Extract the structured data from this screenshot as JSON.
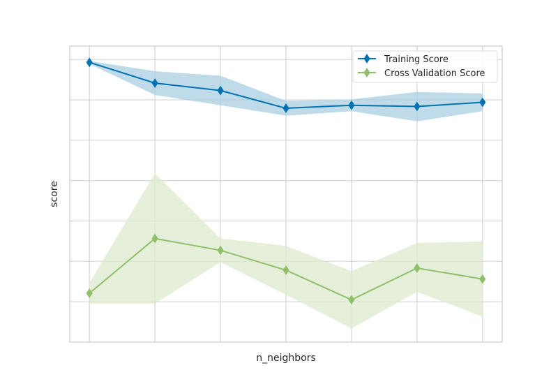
{
  "chart_data": {
    "type": "line",
    "xlabel": "n_neighbors",
    "ylabel": "score",
    "x": [
      1,
      2,
      3,
      4,
      5,
      6,
      7
    ],
    "xlim": [
      0.7,
      7.3
    ],
    "ylim": [
      0,
      1
    ],
    "grid": true,
    "legend_position": "top-right",
    "series": [
      {
        "name": "Training Score",
        "color": "#0072b2",
        "band_color": "#a9cfe3",
        "marker": "diamond",
        "values": [
          0.945,
          0.875,
          0.85,
          0.79,
          0.8,
          0.796,
          0.81
        ],
        "upper": [
          0.95,
          0.915,
          0.9,
          0.815,
          0.82,
          0.845,
          0.84
        ],
        "lower": [
          0.94,
          0.835,
          0.8,
          0.765,
          0.78,
          0.746,
          0.78
        ]
      },
      {
        "name": "Cross Validation Score",
        "color": "#8fbf6a",
        "band_color": "#dde9cc",
        "marker": "diamond",
        "values": [
          0.165,
          0.35,
          0.31,
          0.243,
          0.143,
          0.25,
          0.213
        ],
        "upper": [
          0.2,
          0.57,
          0.35,
          0.325,
          0.24,
          0.335,
          0.34
        ],
        "lower": [
          0.13,
          0.13,
          0.27,
          0.16,
          0.046,
          0.17,
          0.086
        ]
      }
    ]
  }
}
